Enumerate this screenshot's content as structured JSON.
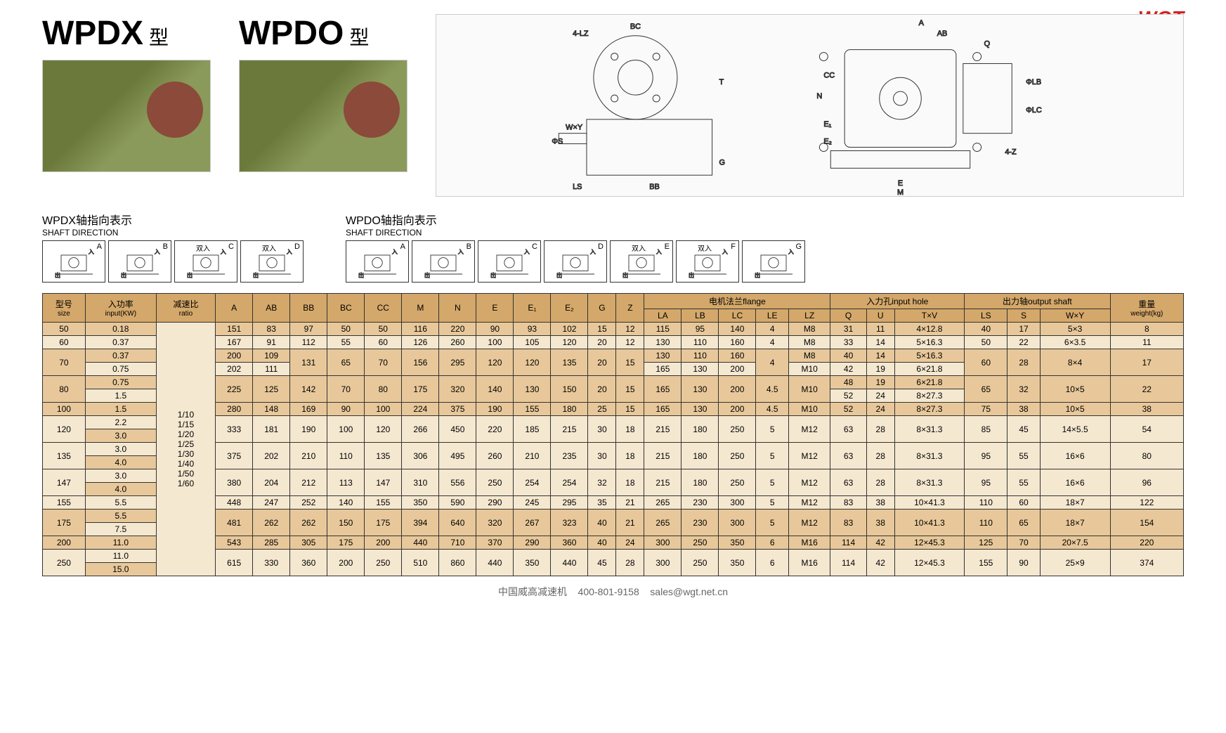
{
  "logo": "WGT",
  "models": [
    {
      "name": "WPDX",
      "suffix": "型"
    },
    {
      "name": "WPDO",
      "suffix": "型"
    }
  ],
  "shaft_wpdx": {
    "title_cn": "WPDX轴指向表示",
    "title_en": "SHAFT DIRECTION",
    "dirs": [
      "A",
      "B",
      "C",
      "D"
    ],
    "dir_labels": {
      "C": "双入",
      "D": "双入"
    }
  },
  "shaft_wpdo": {
    "title_cn": "WPDO轴指向表示",
    "title_en": "SHAFT DIRECTION",
    "dirs": [
      "A",
      "B",
      "C",
      "D",
      "E",
      "F",
      "G"
    ],
    "dir_labels": {
      "E": "双入",
      "F": "双入"
    }
  },
  "headers": {
    "size": {
      "cn": "型号",
      "en": "size"
    },
    "input": {
      "cn": "入功率",
      "en": "input(KW)"
    },
    "ratio": {
      "cn": "减速比",
      "en": "ratio"
    },
    "A": "A",
    "AB": "AB",
    "BB": "BB",
    "BC": "BC",
    "CC": "CC",
    "M": "M",
    "N": "N",
    "E": "E",
    "E1": "E₁",
    "E2": "E₂",
    "G": "G",
    "Z": "Z",
    "flange": {
      "cn": "电机法兰",
      "en": "flange"
    },
    "LA": "LA",
    "LB": "LB",
    "LC": "LC",
    "LE": "LE",
    "LZ": "LZ",
    "input_hole": {
      "cn": "入力孔",
      "en": "input hole"
    },
    "Q": "Q",
    "U": "U",
    "TxV": "T×V",
    "output_shaft": {
      "cn": "出力轴",
      "en": "output shaft"
    },
    "LS": "LS",
    "S": "S",
    "WxY": "W×Y",
    "weight": {
      "cn": "重量",
      "en": "weight(kg)"
    }
  },
  "ratio_text": "1/10\n1/15\n1/20\n1/25\n1/30\n1/40\n1/50\n1/60",
  "rows": [
    {
      "size": "50",
      "input": "0.18",
      "A": "151",
      "AB": "83",
      "BB": "97",
      "BC": "50",
      "CC": "50",
      "M": "116",
      "N": "220",
      "E": "90",
      "E1": "93",
      "E2": "102",
      "G": "15",
      "Z": "12",
      "LA": "115",
      "LB": "95",
      "LC": "140",
      "LE": "4",
      "LZ": "M8",
      "Q": "31",
      "U": "11",
      "TxV": "4×12.8",
      "LS": "40",
      "S": "17",
      "WxY": "5×3",
      "wt": "8"
    },
    {
      "size": "60",
      "input": "0.37",
      "A": "167",
      "AB": "91",
      "BB": "112",
      "BC": "55",
      "CC": "60",
      "M": "126",
      "N": "260",
      "E": "100",
      "E1": "105",
      "E2": "120",
      "G": "20",
      "Z": "12",
      "LA": "130",
      "LB": "110",
      "LC": "160",
      "LE": "4",
      "LZ": "M8",
      "Q": "33",
      "U": "14",
      "TxV": "5×16.3",
      "LS": "50",
      "S": "22",
      "WxY": "6×3.5",
      "wt": "11"
    },
    {
      "size": "70",
      "input": "0.37",
      "input2": "0.75",
      "A": "200",
      "A2": "202",
      "AB": "109",
      "AB2": "111",
      "BB": "131",
      "BC": "65",
      "CC": "70",
      "M": "156",
      "N": "295",
      "E": "120",
      "E1": "120",
      "E2": "135",
      "G": "20",
      "Z": "15",
      "LA": "130",
      "LA2": "165",
      "LB": "110",
      "LB2": "130",
      "LC": "160",
      "LC2": "200",
      "LE": "4",
      "LZ": "M8",
      "LZ2": "M10",
      "Q": "40",
      "Q2": "42",
      "U": "14",
      "U2": "19",
      "TxV": "5×16.3",
      "TxV2": "6×21.8",
      "LS": "60",
      "S": "28",
      "WxY": "8×4",
      "wt": "17"
    },
    {
      "size": "80",
      "input": "0.75",
      "input2": "1.5",
      "A": "225",
      "AB": "125",
      "BB": "142",
      "BC": "70",
      "CC": "80",
      "M": "175",
      "N": "320",
      "E": "140",
      "E1": "130",
      "E2": "150",
      "G": "20",
      "Z": "15",
      "LA": "165",
      "LB": "130",
      "LC": "200",
      "LE": "4.5",
      "LZ": "M10",
      "Q": "48",
      "Q2": "52",
      "U": "19",
      "U2": "24",
      "TxV": "6×21.8",
      "TxV2": "8×27.3",
      "LS": "65",
      "S": "32",
      "WxY": "10×5",
      "wt": "22"
    },
    {
      "size": "100",
      "input": "1.5",
      "A": "280",
      "AB": "148",
      "BB": "169",
      "BC": "90",
      "CC": "100",
      "M": "224",
      "N": "375",
      "E": "190",
      "E1": "155",
      "E2": "180",
      "G": "25",
      "Z": "15",
      "LA": "165",
      "LB": "130",
      "LC": "200",
      "LE": "4.5",
      "LZ": "M10",
      "Q": "52",
      "U": "24",
      "TxV": "8×27.3",
      "LS": "75",
      "S": "38",
      "WxY": "10×5",
      "wt": "38"
    },
    {
      "size": "120",
      "input": "2.2",
      "input2": "3.0",
      "A": "333",
      "AB": "181",
      "BB": "190",
      "BC": "100",
      "CC": "120",
      "M": "266",
      "N": "450",
      "E": "220",
      "E1": "185",
      "E2": "215",
      "G": "30",
      "Z": "18",
      "LA": "215",
      "LB": "180",
      "LC": "250",
      "LE": "5",
      "LZ": "M12",
      "Q": "63",
      "U": "28",
      "TxV": "8×31.3",
      "LS": "85",
      "S": "45",
      "WxY": "14×5.5",
      "wt": "54"
    },
    {
      "size": "135",
      "input": "3.0",
      "input2": "4.0",
      "A": "375",
      "AB": "202",
      "BB": "210",
      "BC": "110",
      "CC": "135",
      "M": "306",
      "N": "495",
      "E": "260",
      "E1": "210",
      "E2": "235",
      "G": "30",
      "Z": "18",
      "LA": "215",
      "LB": "180",
      "LC": "250",
      "LE": "5",
      "LZ": "M12",
      "Q": "63",
      "U": "28",
      "TxV": "8×31.3",
      "LS": "95",
      "S": "55",
      "WxY": "16×6",
      "wt": "80"
    },
    {
      "size": "147",
      "input": "3.0",
      "input2": "4.0",
      "A": "380",
      "AB": "204",
      "BB": "212",
      "BC": "113",
      "CC": "147",
      "M": "310",
      "N": "556",
      "E": "250",
      "E1": "254",
      "E2": "254",
      "G": "32",
      "Z": "18",
      "LA": "215",
      "LB": "180",
      "LC": "250",
      "LE": "5",
      "LZ": "M12",
      "Q": "63",
      "U": "28",
      "TxV": "8×31.3",
      "LS": "95",
      "S": "55",
      "WxY": "16×6",
      "wt": "96"
    },
    {
      "size": "155",
      "input": "5.5",
      "A": "448",
      "AB": "247",
      "BB": "252",
      "BC": "140",
      "CC": "155",
      "M": "350",
      "N": "590",
      "E": "290",
      "E1": "245",
      "E2": "295",
      "G": "35",
      "Z": "21",
      "LA": "265",
      "LB": "230",
      "LC": "300",
      "LE": "5",
      "LZ": "M12",
      "Q": "83",
      "U": "38",
      "TxV": "10×41.3",
      "LS": "110",
      "S": "60",
      "WxY": "18×7",
      "wt": "122"
    },
    {
      "size": "175",
      "input": "5.5",
      "input2": "7.5",
      "A": "481",
      "AB": "262",
      "BB": "262",
      "BC": "150",
      "CC": "175",
      "M": "394",
      "N": "640",
      "E": "320",
      "E1": "267",
      "E2": "323",
      "G": "40",
      "Z": "21",
      "LA": "265",
      "LB": "230",
      "LC": "300",
      "LE": "5",
      "LZ": "M12",
      "Q": "83",
      "U": "38",
      "TxV": "10×41.3",
      "LS": "110",
      "S": "65",
      "WxY": "18×7",
      "wt": "154"
    },
    {
      "size": "200",
      "input": "11.0",
      "A": "543",
      "AB": "285",
      "BB": "305",
      "BC": "175",
      "CC": "200",
      "M": "440",
      "N": "710",
      "E": "370",
      "E1": "290",
      "E2": "360",
      "G": "40",
      "Z": "24",
      "LA": "300",
      "LB": "250",
      "LC": "350",
      "LE": "6",
      "LZ": "M16",
      "Q": "114",
      "U": "42",
      "TxV": "12×45.3",
      "LS": "125",
      "S": "70",
      "WxY": "20×7.5",
      "wt": "220"
    },
    {
      "size": "250",
      "input": "11.0",
      "input2": "15.0",
      "A": "615",
      "AB": "330",
      "BB": "360",
      "BC": "200",
      "CC": "250",
      "M": "510",
      "N": "860",
      "E": "440",
      "E1": "350",
      "E2": "440",
      "G": "45",
      "Z": "28",
      "LA": "300",
      "LB": "250",
      "LC": "350",
      "LE": "6",
      "LZ": "M16",
      "Q": "114",
      "U": "42",
      "TxV": "12×45.3",
      "LS": "155",
      "S": "90",
      "WxY": "25×9",
      "wt": "374"
    }
  ],
  "footer": {
    "company": "中国威高减速机",
    "phone": "400-801-9158",
    "email": "sales@wgt.net.cn"
  },
  "drawing_labels": [
    "BC",
    "4-LZ",
    "T",
    "W×Y",
    "ΦS",
    "LS",
    "G",
    "BB",
    "A",
    "AB",
    "Q",
    "ΦLB",
    "ΦLC",
    "CC",
    "N",
    "E₁",
    "E₂",
    "E",
    "M",
    "4-Z"
  ],
  "colors": {
    "header_bg": "#d4a86a",
    "row_odd": "#e8c89a",
    "row_even": "#f5e8d0",
    "logo": "#d42020",
    "gearbox": "#6b7a3a"
  }
}
